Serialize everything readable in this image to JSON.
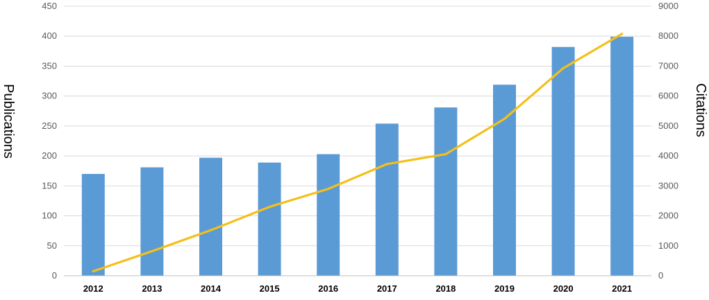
{
  "chart_data": {
    "type": "bar",
    "title": "",
    "categories": [
      "2012",
      "2013",
      "2014",
      "2015",
      "2016",
      "2017",
      "2018",
      "2019",
      "2020",
      "2021"
    ],
    "series": [
      {
        "name": "",
        "type": "bar",
        "axis": "left",
        "color": "#5b9bd5",
        "values": [
          170,
          181,
          197,
          189,
          203,
          254,
          281,
          319,
          382,
          399
        ]
      },
      {
        "name": "",
        "type": "line",
        "axis": "right",
        "color": "#f5bf19",
        "values": [
          150,
          820,
          1520,
          2300,
          2900,
          3730,
          4060,
          5240,
          6930,
          8080
        ]
      }
    ],
    "ylabel": "Publications",
    "y2label": "Citations",
    "ylim": [
      0,
      450
    ],
    "y2lim": [
      0,
      9000
    ],
    "yticks": [
      "0",
      "50",
      "100",
      "150",
      "200",
      "250",
      "300",
      "350",
      "400",
      "450"
    ],
    "y2ticks": [
      "0",
      "1000",
      "2000",
      "3000",
      "4000",
      "5000",
      "6000",
      "7000",
      "8000",
      "9000"
    ],
    "grid": true,
    "legend": "none",
    "gridColor": "#d9d9d9",
    "axisColor": "#bfbfbf"
  }
}
